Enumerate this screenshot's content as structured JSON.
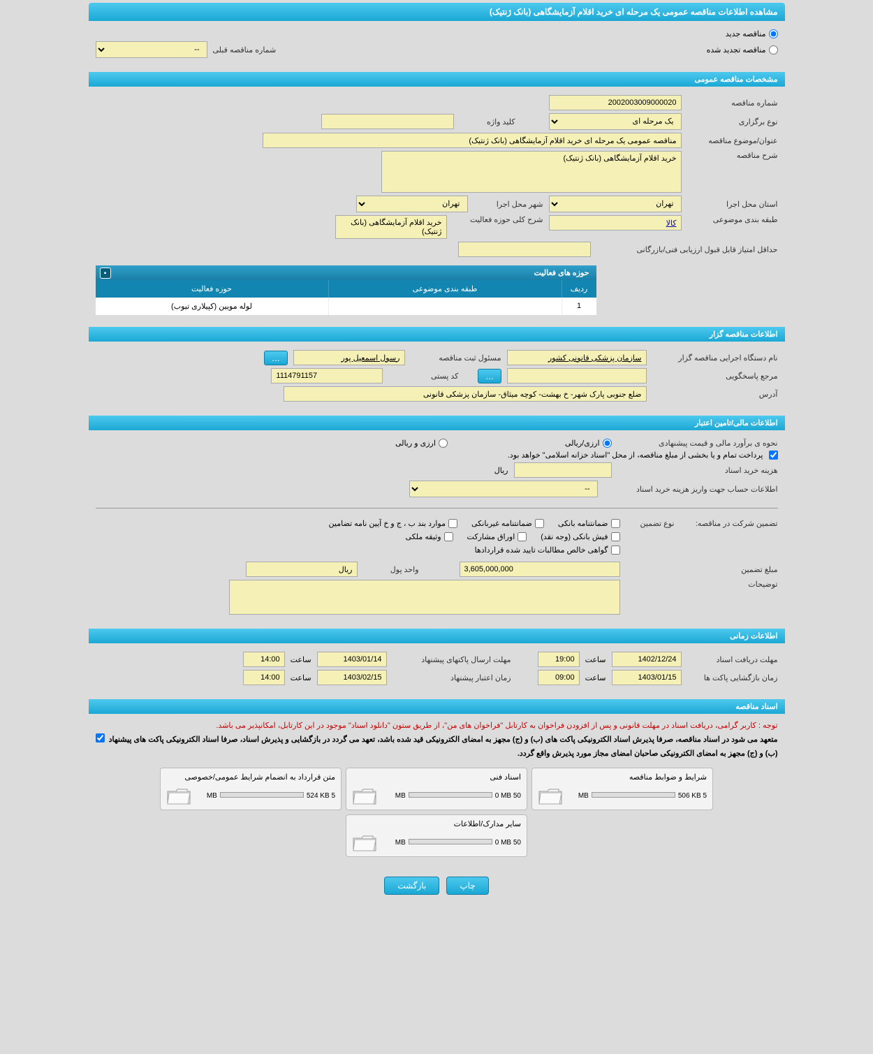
{
  "title": "مشاهده اطلاعات مناقصه عمومی یک مرحله ای خرید اقلام آزمایشگاهی (بانک ژنتیک)",
  "radio_new": "مناقصه جدید",
  "radio_renewed": "مناقصه تجدید شده",
  "prev_tender_label": "شماره مناقصه قبلی",
  "prev_tender_value": "--",
  "sections": {
    "general": "مشخصات مناقصه عمومی",
    "activity": "حوزه های فعالیت",
    "organizer": "اطلاعات مناقصه گزار",
    "financial": "اطلاعات مالی/تامین اعتبار",
    "time": "اطلاعات زمانی",
    "docs": "اسناد مناقصه"
  },
  "general": {
    "tender_no_label": "شماره مناقصه",
    "tender_no": "2002003009000020",
    "type_label": "نوع برگزاری",
    "type": "یک مرحله ای",
    "keyword_label": "کلید واژه",
    "subject_label": "عنوان/موضوع مناقصه",
    "subject": "مناقصه عمومی یک مرحله ای خرید اقلام آزمایشگاهی (بانک ژنتیک)",
    "desc_label": "شرح مناقصه",
    "desc": "خرید اقلام آزمایشگاهی (بانک ژنتیک)",
    "province_label": "استان محل اجرا",
    "province": "تهران",
    "city_label": "شهر محل اجرا",
    "city": "تهران",
    "category_label": "طبقه بندی موضوعی",
    "category": "کالا",
    "activity_desc_label": "شرح کلی حوزه فعالیت",
    "activity_desc": "خرید اقلام آزمایشگاهی (بانک ژنتیک)",
    "min_score_label": "حداقل امتیاز قابل قبول ارزیابی فنی/بازرگانی"
  },
  "activity_table": {
    "col_row": "ردیف",
    "col_category": "طبقه بندی موضوعی",
    "col_activity": "حوزه فعالیت",
    "rows": [
      {
        "n": "1",
        "cat": "",
        "act": "لوله مویین (کپیلاری تیوب)"
      }
    ]
  },
  "organizer": {
    "agency_label": "نام دستگاه اجرایی مناقصه گزار",
    "agency": "سازمان پزشکی قانونی کشور",
    "reg_officer_label": "مسئول ثبت مناقصه",
    "reg_officer": "رسول اسمعیل پور",
    "contact_label": "مرجع پاسخگویی",
    "postal_label": "کد پستی",
    "postal": "1114791157",
    "address_label": "آدرس",
    "address": "ضلع جنوبی پارک شهر- خ بهشت- کوچه میثاق- سازمان پزشکی قانونی"
  },
  "financial": {
    "estimate_label": "نحوه ی برآورد مالی و قیمت پیشنهادی",
    "estimate_rial": "ارزی/ریالی",
    "estimate_currency": "ارزی و ریالی",
    "payment_note": "پرداخت تمام و یا بخشی از مبلغ مناقصه، از محل \"اسناد خزانه اسلامی\" خواهد بود.",
    "doc_cost_label": "هزینه خرید اسناد",
    "doc_cost_unit": "ریال",
    "account_label": "اطلاعات حساب جهت واریز هزینه خرید اسناد",
    "account_value": "--",
    "guarantee_section_label": "تضمین شرکت در مناقصه:",
    "guarantee_type_label": "نوع تضمین",
    "cb_bank": "ضمانتنامه بانکی",
    "cb_nonbank": "ضمانتنامه غیربانکی",
    "cb_cd": "موارد بند ب ، ج و خ آیین نامه تضامین",
    "cb_receipt": "فیش بانکی (وجه نقد)",
    "cb_bonds": "اوراق مشارکت",
    "cb_deed": "وثیقه ملکی",
    "cb_clearance": "گواهی خالص مطالبات تایید شده قراردادها",
    "guarantee_amount_label": "مبلغ تضمین",
    "guarantee_amount": "3,605,000,000",
    "currency_unit_label": "واحد پول",
    "currency_unit": "ریال",
    "notes_label": "توضیحات"
  },
  "time": {
    "receive_deadline_label": "مهلت دریافت اسناد",
    "receive_date": "1402/12/24",
    "time_label": "ساعت",
    "receive_time": "19:00",
    "submit_deadline_label": "مهلت ارسال پاکتهای پیشنهاد",
    "submit_date": "1403/01/14",
    "submit_time": "14:00",
    "opening_label": "زمان بازگشایی پاکت ها",
    "opening_date": "1403/01/15",
    "opening_time": "09:00",
    "validity_label": "زمان اعتبار پیشنهاد",
    "validity_date": "1403/02/15",
    "validity_time": "14:00"
  },
  "docs": {
    "notice1": "توجه : کاربر گرامی، دریافت اسناد در مهلت قانونی و پس از افزودن فراخوان به کارتابل \"فراخوان های من\"، از طریق ستون \"دانلود اسناد\" موجود در این کارتابل، امکانپذیر می باشد.",
    "notice2": "متعهد می شود در اسناد مناقصه، صرفا پذیرش اسناد الکترونیکی پاکت های (ب) و (ج) مجهز به امضای الکترونیکی قید شده باشد، تعهد می گردد در بازگشایی و پذیرش اسناد، صرفا اسناد الکترونیکی پاکت های پیشنهاد (ب) و (ج) مجهز به امضای الکترونیکی صاحبان امضای مجاز مورد پذیرش واقع گردد.",
    "cards": [
      {
        "title": "شرایط و ضوابط مناقصه",
        "used": "506 KB",
        "total": "5 MB"
      },
      {
        "title": "اسناد فنی",
        "used": "0 MB",
        "total": "50 MB"
      },
      {
        "title": "متن قرارداد به انضمام شرایط عمومی/خصوصی",
        "used": "524 KB",
        "total": "5 MB"
      },
      {
        "title": "سایر مدارک/اطلاعات",
        "used": "0 MB",
        "total": "50 MB"
      }
    ]
  },
  "buttons": {
    "print": "چاپ",
    "back": "بازگشت",
    "ellipsis": "..."
  }
}
